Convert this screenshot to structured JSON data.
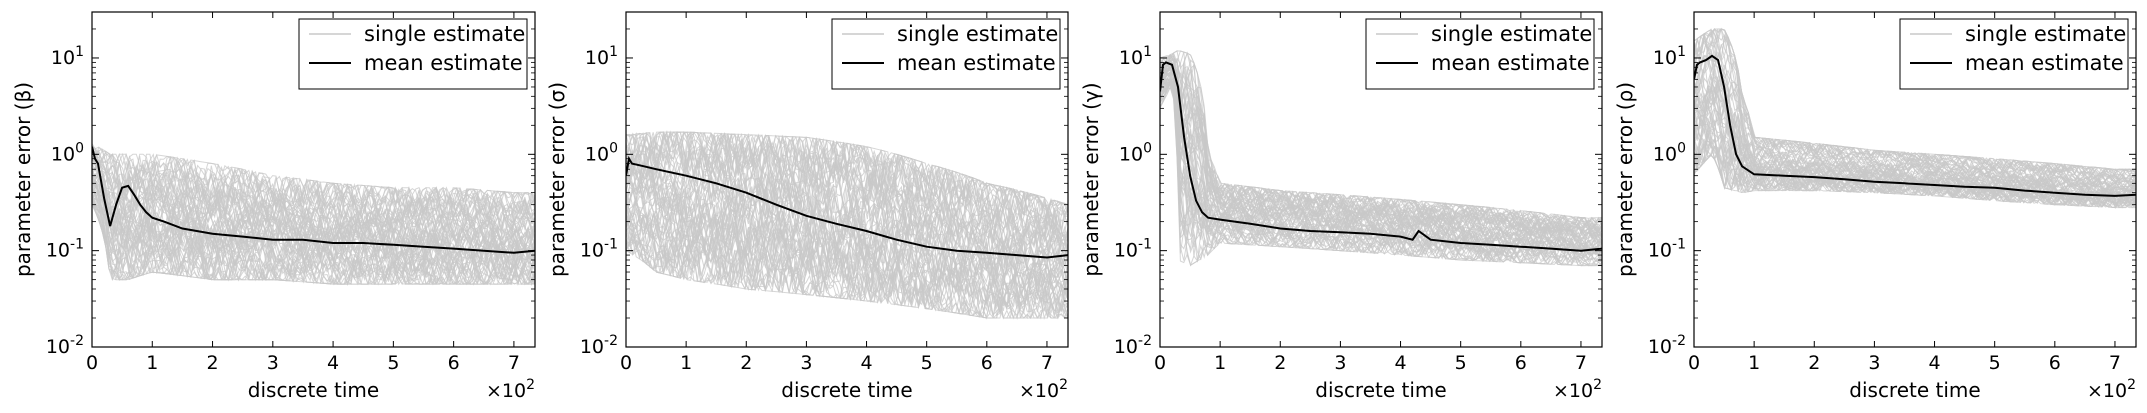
{
  "chart_data": [
    {
      "type": "line",
      "xlabel": "discrete time",
      "ylabel": "parameter error (β)",
      "x_multiplier": "×10",
      "x_multiplier_exp": "2",
      "xlim": [
        0,
        7.35
      ],
      "ylim": [
        0.01,
        30
      ],
      "yscale": "log",
      "xticks": [
        "0",
        "1",
        "2",
        "3",
        "4",
        "5",
        "6",
        "7"
      ],
      "yticks": [
        {
          "base": "10",
          "exp": "-2"
        },
        {
          "base": "10",
          "exp": "-1"
        },
        {
          "base": "10",
          "exp": "0"
        },
        {
          "base": "10",
          "exp": "1"
        }
      ],
      "legend": {
        "position": "top-right",
        "entries": [
          "single estimate",
          "mean estimate"
        ]
      },
      "series": [
        {
          "name": "mean estimate",
          "color": "#000000",
          "x": [
            0,
            0.05,
            0.1,
            0.2,
            0.3,
            0.4,
            0.5,
            0.6,
            0.7,
            0.8,
            0.9,
            1.0,
            1.2,
            1.5,
            2.0,
            2.5,
            3.0,
            3.5,
            4.0,
            4.5,
            5.0,
            5.5,
            6.0,
            6.5,
            7.0,
            7.35
          ],
          "y": [
            1.2,
            0.9,
            0.8,
            0.35,
            0.18,
            0.3,
            0.45,
            0.47,
            0.38,
            0.3,
            0.25,
            0.22,
            0.2,
            0.17,
            0.15,
            0.14,
            0.13,
            0.13,
            0.12,
            0.12,
            0.115,
            0.11,
            0.105,
            0.1,
            0.095,
            0.1
          ]
        },
        {
          "name": "single estimate",
          "color": "#c8c8c8",
          "band": {
            "x": [
              0,
              0.3,
              0.6,
              1.0,
              2.0,
              3.0,
              4.0,
              5.0,
              6.0,
              7.0,
              7.35
            ],
            "lo": [
              0.3,
              0.05,
              0.05,
              0.06,
              0.05,
              0.05,
              0.045,
              0.045,
              0.045,
              0.045,
              0.045
            ],
            "hi": [
              1.3,
              1.0,
              1.0,
              1.0,
              0.8,
              0.6,
              0.5,
              0.45,
              0.45,
              0.4,
              0.4
            ]
          }
        }
      ]
    },
    {
      "type": "line",
      "xlabel": "discrete time",
      "ylabel": "parameter error (σ)",
      "x_multiplier": "×10",
      "x_multiplier_exp": "2",
      "xlim": [
        0,
        7.35
      ],
      "ylim": [
        0.01,
        30
      ],
      "yscale": "log",
      "xticks": [
        "0",
        "1",
        "2",
        "3",
        "4",
        "5",
        "6",
        "7"
      ],
      "yticks": [
        {
          "base": "10",
          "exp": "-2"
        },
        {
          "base": "10",
          "exp": "-1"
        },
        {
          "base": "10",
          "exp": "0"
        },
        {
          "base": "10",
          "exp": "1"
        }
      ],
      "legend": {
        "position": "top-right",
        "entries": [
          "single estimate",
          "mean estimate"
        ]
      },
      "series": [
        {
          "name": "mean estimate",
          "color": "#000000",
          "x": [
            0,
            0.05,
            0.1,
            0.3,
            0.5,
            1.0,
            1.5,
            2.0,
            2.5,
            3.0,
            3.5,
            4.0,
            4.5,
            5.0,
            5.5,
            6.0,
            6.5,
            7.0,
            7.35
          ],
          "y": [
            0.6,
            0.9,
            0.8,
            0.75,
            0.7,
            0.6,
            0.5,
            0.4,
            0.3,
            0.23,
            0.19,
            0.16,
            0.13,
            0.11,
            0.1,
            0.095,
            0.09,
            0.085,
            0.09
          ]
        },
        {
          "name": "single estimate",
          "color": "#c8c8c8",
          "band": {
            "x": [
              0,
              0.5,
              1.0,
              2.0,
              3.0,
              4.0,
              5.0,
              6.0,
              7.0,
              7.35
            ],
            "lo": [
              0.1,
              0.06,
              0.05,
              0.04,
              0.035,
              0.03,
              0.025,
              0.02,
              0.02,
              0.02
            ],
            "hi": [
              1.6,
              1.7,
              1.7,
              1.6,
              1.5,
              1.2,
              0.8,
              0.5,
              0.35,
              0.3
            ]
          }
        }
      ]
    },
    {
      "type": "line",
      "xlabel": "discrete time",
      "ylabel": "parameter error (γ)",
      "x_multiplier": "×10",
      "x_multiplier_exp": "2",
      "xlim": [
        0,
        7.35
      ],
      "ylim": [
        0.01,
        30
      ],
      "yscale": "log",
      "xticks": [
        "0",
        "1",
        "2",
        "3",
        "4",
        "5",
        "6",
        "7"
      ],
      "yticks": [
        {
          "base": "10",
          "exp": "-2"
        },
        {
          "base": "10",
          "exp": "-1"
        },
        {
          "base": "10",
          "exp": "0"
        },
        {
          "base": "10",
          "exp": "1"
        }
      ],
      "legend": {
        "position": "top-right",
        "entries": [
          "single estimate",
          "mean estimate"
        ]
      },
      "series": [
        {
          "name": "mean estimate",
          "color": "#000000",
          "x": [
            0,
            0.05,
            0.1,
            0.2,
            0.3,
            0.4,
            0.5,
            0.6,
            0.7,
            0.8,
            1.0,
            1.5,
            2.0,
            2.5,
            3.0,
            3.5,
            4.0,
            4.2,
            4.3,
            4.5,
            5.0,
            5.5,
            6.0,
            6.5,
            7.0,
            7.35
          ],
          "y": [
            4.5,
            8.5,
            9.0,
            8.5,
            5.0,
            1.5,
            0.6,
            0.33,
            0.25,
            0.22,
            0.21,
            0.19,
            0.17,
            0.16,
            0.155,
            0.15,
            0.14,
            0.13,
            0.16,
            0.13,
            0.12,
            0.115,
            0.11,
            0.105,
            0.1,
            0.105
          ]
        },
        {
          "name": "single estimate",
          "color": "#c8c8c8",
          "band": {
            "x": [
              0,
              0.2,
              0.3,
              0.5,
              0.8,
              1.0,
              2.0,
              3.0,
              4.0,
              5.0,
              6.0,
              7.0,
              7.35
            ],
            "lo": [
              3.0,
              5.0,
              0.08,
              0.07,
              0.09,
              0.12,
              0.11,
              0.1,
              0.09,
              0.08,
              0.075,
              0.07,
              0.07
            ],
            "hi": [
              10,
              11,
              12,
              11,
              1.0,
              0.5,
              0.42,
              0.38,
              0.34,
              0.3,
              0.26,
              0.22,
              0.22
            ]
          }
        }
      ]
    },
    {
      "type": "line",
      "xlabel": "discrete time",
      "ylabel": "parameter error (ρ)",
      "x_multiplier": "×10",
      "x_multiplier_exp": "2",
      "xlim": [
        0,
        7.35
      ],
      "ylim": [
        0.01,
        30
      ],
      "yscale": "log",
      "xticks": [
        "0",
        "1",
        "2",
        "3",
        "4",
        "5",
        "6",
        "7"
      ],
      "yticks": [
        {
          "base": "10",
          "exp": "-2"
        },
        {
          "base": "10",
          "exp": "-1"
        },
        {
          "base": "10",
          "exp": "0"
        },
        {
          "base": "10",
          "exp": "1"
        }
      ],
      "legend": {
        "position": "top-right",
        "entries": [
          "single estimate",
          "mean estimate"
        ]
      },
      "series": [
        {
          "name": "mean estimate",
          "color": "#000000",
          "x": [
            0,
            0.05,
            0.1,
            0.2,
            0.3,
            0.4,
            0.5,
            0.6,
            0.7,
            0.8,
            1.0,
            1.5,
            2.0,
            2.5,
            3.0,
            3.5,
            4.0,
            4.5,
            5.0,
            5.5,
            6.0,
            6.5,
            7.0,
            7.35
          ],
          "y": [
            6.0,
            8.5,
            9.0,
            9.5,
            10.5,
            9.5,
            5.0,
            2.0,
            1.0,
            0.75,
            0.62,
            0.6,
            0.58,
            0.55,
            0.52,
            0.5,
            0.48,
            0.46,
            0.45,
            0.42,
            0.4,
            0.38,
            0.37,
            0.38
          ]
        },
        {
          "name": "single estimate",
          "color": "#c8c8c8",
          "band": {
            "x": [
              0,
              0.3,
              0.5,
              0.8,
              1.0,
              2.0,
              3.0,
              4.0,
              5.0,
              6.0,
              7.0,
              7.35
            ],
            "lo": [
              0.6,
              1.0,
              0.45,
              0.4,
              0.42,
              0.42,
              0.4,
              0.37,
              0.33,
              0.3,
              0.28,
              0.28
            ],
            "hi": [
              15,
              20,
              20,
              4.0,
              1.5,
              1.3,
              1.1,
              1.0,
              0.9,
              0.8,
              0.7,
              0.7
            ]
          }
        }
      ]
    }
  ]
}
